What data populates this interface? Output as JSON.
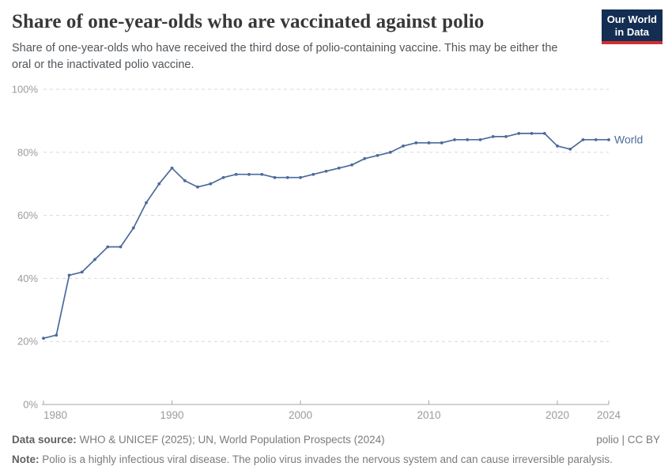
{
  "header": {
    "title": "Share of one-year-olds who are vaccinated against polio",
    "subtitle": "Share of one-year-olds who have received the third dose of polio-containing vaccine. This may be either the oral or the inactivated polio vaccine.",
    "logo": {
      "line1": "Our World",
      "line2": "in Data"
    }
  },
  "chart_data": {
    "type": "line",
    "title": "Share of one-year-olds who are vaccinated against polio",
    "xlabel": "",
    "ylabel": "",
    "xlim": [
      1980,
      2024
    ],
    "ylim": [
      0,
      100
    ],
    "grid": "horizontal-dashed",
    "legend_position": "end-of-line-label",
    "x_ticks": [
      1980,
      1990,
      2000,
      2010,
      2020,
      2024
    ],
    "y_ticks": [
      0,
      20,
      40,
      60,
      80,
      100
    ],
    "y_tick_suffix": "%",
    "x": [
      1980,
      1981,
      1982,
      1983,
      1984,
      1985,
      1986,
      1987,
      1988,
      1989,
      1990,
      1991,
      1992,
      1993,
      1994,
      1995,
      1996,
      1997,
      1998,
      1999,
      2000,
      2001,
      2002,
      2003,
      2004,
      2005,
      2006,
      2007,
      2008,
      2009,
      2010,
      2011,
      2012,
      2013,
      2014,
      2015,
      2016,
      2017,
      2018,
      2019,
      2020,
      2021,
      2022,
      2023,
      2024
    ],
    "series": [
      {
        "name": "World",
        "color": "#4C6A9C",
        "values": [
          21,
          22,
          41,
          42,
          46,
          50,
          50,
          56,
          64,
          70,
          75,
          71,
          69,
          70,
          72,
          73,
          73,
          73,
          72,
          72,
          72,
          73,
          74,
          75,
          76,
          78,
          79,
          80,
          82,
          83,
          83,
          83,
          84,
          84,
          84,
          85,
          85,
          86,
          86,
          86,
          82,
          81,
          84,
          84,
          84
        ]
      }
    ]
  },
  "colors": {
    "grid": "#d9d9d9",
    "axis": "#a6a6a6",
    "tick_label": "#9b9b9b",
    "logo_bg": "#132e52",
    "logo_underline": "#d12f33"
  },
  "footer": {
    "source_label": "Data source:",
    "source_text": " WHO & UNICEF (2025); UN, World Population Prospects (2024)",
    "license_text": "polio | CC BY",
    "note_label": "Note:",
    "note_text": " Polio is a highly infectious viral disease. The polio virus invades the nervous system and can cause irreversible paralysis."
  }
}
